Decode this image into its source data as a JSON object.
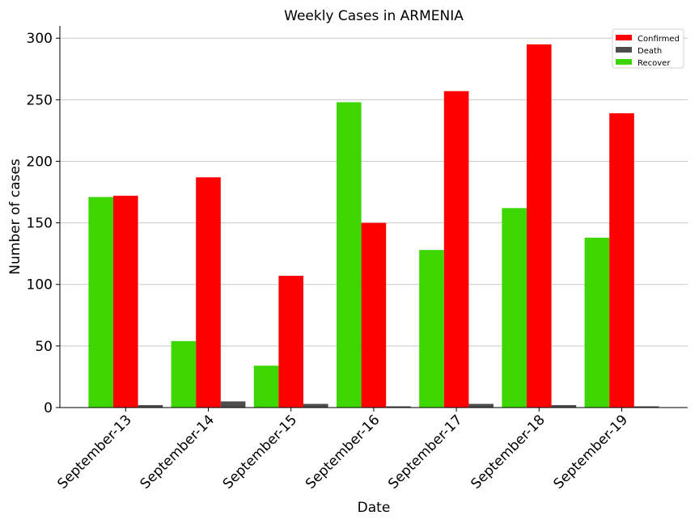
{
  "chart_data": {
    "type": "bar",
    "title": "Weekly Cases in ARMENIA",
    "xlabel": "Date",
    "ylabel": "Number of cases",
    "categories": [
      "September-13",
      "September-14",
      "September-15",
      "September-16",
      "September-17",
      "September-18",
      "September-19"
    ],
    "series": [
      {
        "name": "Recover",
        "color": "#3dd600",
        "values": [
          171,
          54,
          34,
          248,
          128,
          162,
          138
        ]
      },
      {
        "name": "Confirmed",
        "color": "#ff0000",
        "values": [
          172,
          187,
          107,
          150,
          257,
          295,
          239
        ]
      },
      {
        "name": "Death",
        "color": "#4d4d4d",
        "values": [
          2,
          5,
          3,
          1,
          3,
          2,
          1
        ]
      }
    ],
    "legend_order": [
      "Confirmed",
      "Death",
      "Recover"
    ],
    "ylim": [
      0,
      310
    ],
    "yticks": [
      0,
      50,
      100,
      150,
      200,
      250,
      300
    ],
    "grid": "horizontal",
    "legend_position": "top-right"
  }
}
